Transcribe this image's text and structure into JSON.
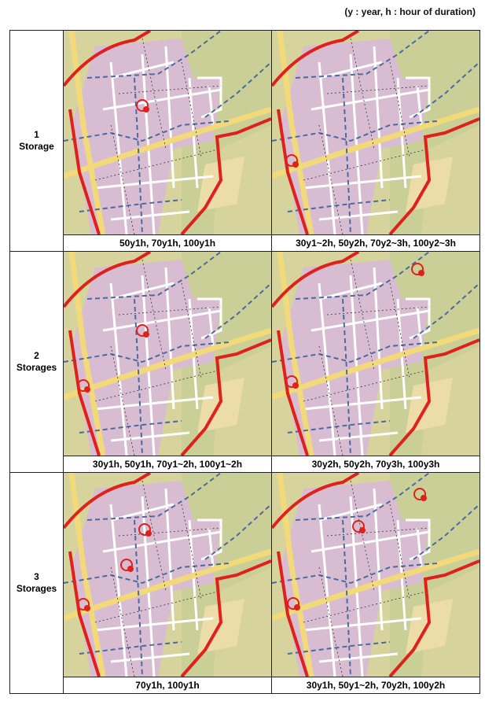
{
  "note": "(y : year, h : hour of duration)",
  "rows": [
    {
      "label": [
        "1",
        "Storage"
      ],
      "captions": [
        "50y1h, 70y1h, 100y1h",
        "30y1~2h, 50y2h, 70y2~3h, 100y2~3h"
      ]
    },
    {
      "label": [
        "2",
        "Storages"
      ],
      "captions": [
        "30y1h, 50y1h, 70y1~2h, 100y1~2h",
        "30y2h, 50y2h, 70y3h, 100y3h"
      ]
    },
    {
      "label": [
        "3",
        "Storages"
      ],
      "captions": [
        "70y1h, 100y1h",
        "30y1h, 50y1~2h, 70y2h, 100y2h"
      ]
    }
  ]
}
